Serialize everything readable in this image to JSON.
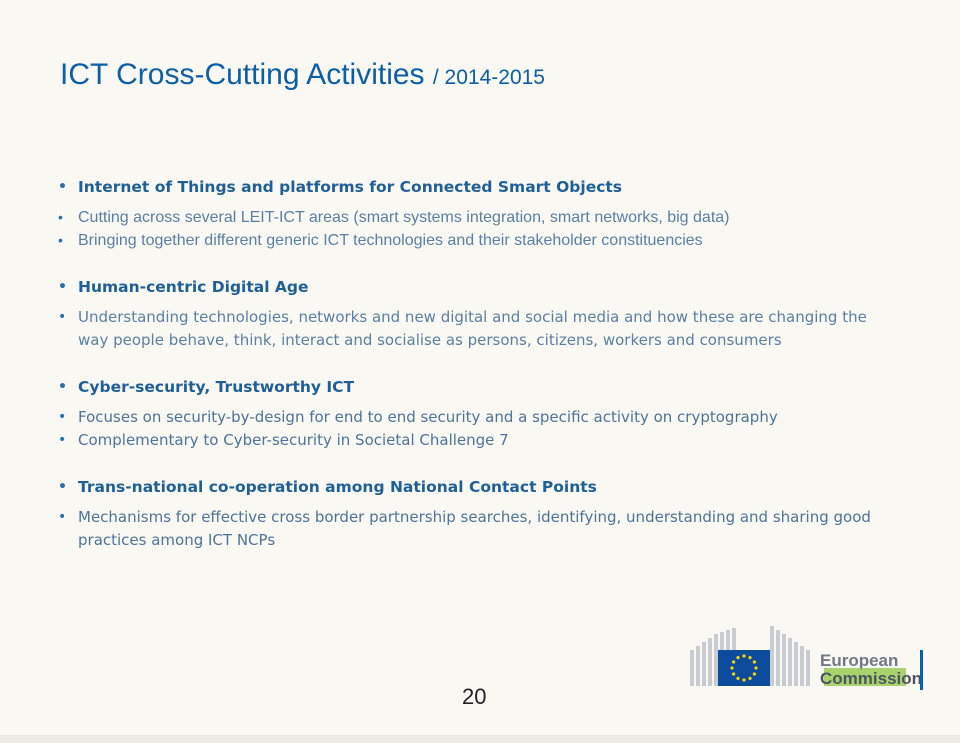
{
  "title": {
    "main": "ICT Cross-Cutting Activities",
    "sub": "/ 2014-2015"
  },
  "sections": [
    {
      "heading": "Internet of Things and platforms for Connected Smart Objects",
      "bullets": [
        "Cutting across several LEIT-ICT areas (smart systems integration, smart networks, big data)",
        "Bringing together different generic ICT technologies and their stakeholder constituencies"
      ]
    },
    {
      "heading": "Human-centric Digital Age",
      "bullets": [
        "Understanding  technologies, networks and new digital and social media and how these are changing the way people behave, think, interact and socialise as persons, citizens, workers and consumers"
      ]
    },
    {
      "heading": "Cyber-security, Trustworthy ICT",
      "bullets": [
        "Focuses on security-by-design for end to end security and a specific activity on cryptography",
        "Complementary to Cyber-security in Societal Challenge 7"
      ]
    },
    {
      "heading": "Trans-national co-operation among National Contact Points",
      "bullets": [
        "Mechanisms for effective cross border partnership searches, identifying, understanding and sharing good practices among ICT NCPs"
      ]
    }
  ],
  "footer": {
    "page_number": "20",
    "logo_text_1": "European",
    "logo_text_2": "Commission"
  },
  "colors": {
    "title": "#0b5ea8",
    "heading": "#1f5f98",
    "body": "#5a7fa3",
    "eu_blue": "#0d4c9c",
    "eu_star": "#ffd500"
  },
  "bullet_glyph": "•"
}
